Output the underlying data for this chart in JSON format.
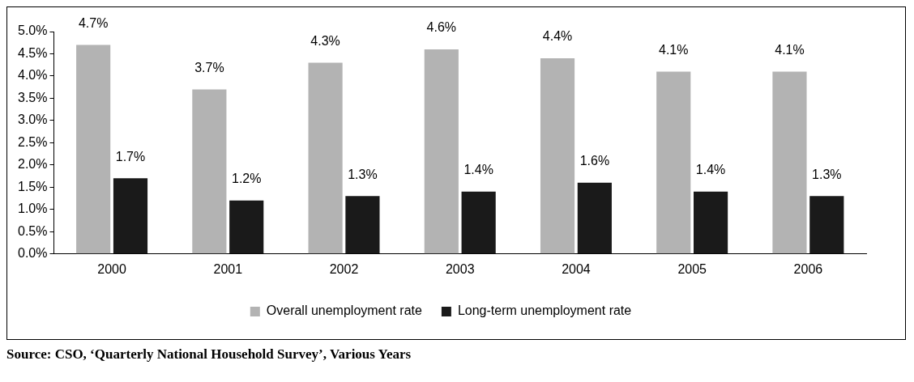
{
  "chart_data": {
    "type": "bar",
    "categories": [
      "2000",
      "2001",
      "2002",
      "2003",
      "2004",
      "2005",
      "2006"
    ],
    "series": [
      {
        "name": "Overall unemployment rate",
        "color": "#b3b3b3",
        "values": [
          4.7,
          3.7,
          4.3,
          4.6,
          4.4,
          4.1,
          4.1
        ],
        "value_labels": [
          "4.7%",
          "3.7%",
          "4.3%",
          "4.6%",
          "4.4%",
          "4.1%",
          "4.1%"
        ]
      },
      {
        "name": "Long-term unemployment rate",
        "color": "#1a1a1a",
        "values": [
          1.7,
          1.2,
          1.3,
          1.4,
          1.6,
          1.4,
          1.3
        ],
        "value_labels": [
          "1.7%",
          "1.2%",
          "1.3%",
          "1.4%",
          "1.6%",
          "1.4%",
          "1.3%"
        ]
      }
    ],
    "ylim": [
      0,
      5
    ],
    "yticks": [
      {
        "value": 0,
        "label": "0.0%"
      },
      {
        "value": 0.5,
        "label": "0.5%"
      },
      {
        "value": 1,
        "label": "1.0%"
      },
      {
        "value": 1.5,
        "label": "1.5%"
      },
      {
        "value": 2,
        "label": "2.0%"
      },
      {
        "value": 2.5,
        "label": "2.5%"
      },
      {
        "value": 3,
        "label": "3.0%"
      },
      {
        "value": 3.5,
        "label": "3.5%"
      },
      {
        "value": 4,
        "label": "4.0%"
      },
      {
        "value": 4.5,
        "label": "4.5%"
      },
      {
        "value": 5,
        "label": "5.0%"
      }
    ],
    "grid": false,
    "legend": "bottom",
    "annotations": [
      "Source: CSO, ‘Quarterly National Household Survey’, Various Years"
    ]
  }
}
